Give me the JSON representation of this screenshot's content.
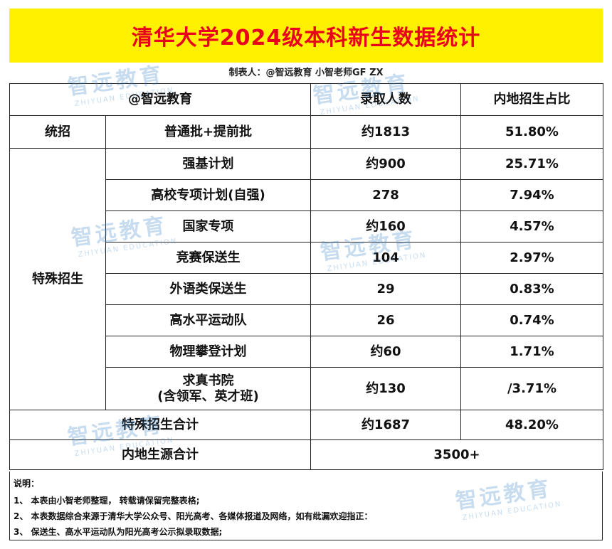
{
  "title": "清华大学2024级本科新生数据统计",
  "maker": "制表人：@智远教育 小智老师GF ZX",
  "header": {
    "org": "@智远教育",
    "col_count": "录取人数",
    "col_ratio": "内地招生占比"
  },
  "unified": {
    "group": "统招",
    "name": "普通批+提前批",
    "count": "约1813",
    "ratio": "51.80%"
  },
  "special": {
    "group": "特殊招生",
    "rows": [
      {
        "name": "强基计划",
        "count": "约900",
        "ratio": "25.71%"
      },
      {
        "name": "高校专项计划(自强)",
        "count": "278",
        "ratio": "7.94%"
      },
      {
        "name": "国家专项",
        "count": "约160",
        "ratio": "4.57%"
      },
      {
        "name": "竞赛保送生",
        "count": "104",
        "ratio": "2.97%"
      },
      {
        "name": "外语类保送生",
        "count": "29",
        "ratio": "0.83%"
      },
      {
        "name": "高水平运动队",
        "count": "26",
        "ratio": "0.74%"
      },
      {
        "name": "物理攀登计划",
        "count": "约60",
        "ratio": "1.71%"
      },
      {
        "name_line1": "求真书院",
        "name_line2": "(含领军、英才班)",
        "count": "约130",
        "ratio": "/3.71%"
      }
    ],
    "total_label": "特殊招生合计",
    "total_count": "约1687",
    "total_ratio": "48.20%"
  },
  "mainland": {
    "label": "内地生源合计",
    "value": "3500+"
  },
  "notes": {
    "heading": "说明：",
    "lines": [
      "1、 本表由小智老师整理， 转载请保留完整表格;",
      "2、 本表数据综合来源于清华大学公众号、阳光高考、各媒体报道及网络，如有纰漏欢迎指正：",
      "3、 保送生、高水平运动队为阳光高考公示拟录取数据;"
    ]
  },
  "watermark": {
    "cn": "智远教育",
    "en": "ZHIYUAN EDUCATION",
    "color": "#3b86c8"
  },
  "colors": {
    "title_bg": "#fff100",
    "title_text": "#e8001c"
  }
}
